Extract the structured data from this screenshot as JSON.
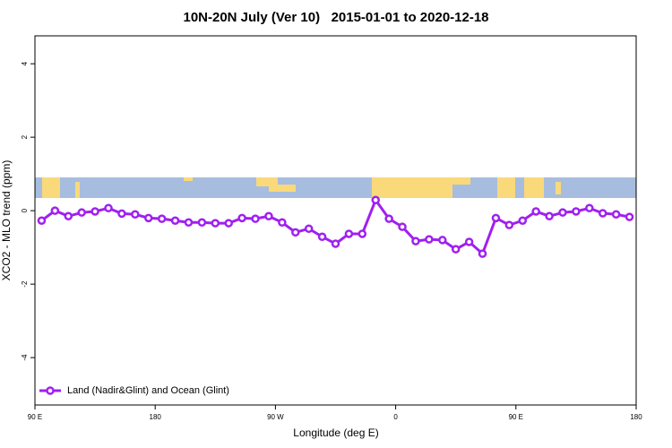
{
  "chart_data": {
    "type": "line",
    "title": "10N-20N July (Ver 10)   2015-01-01 to 2020-12-18",
    "x_label": "Longitude (deg E)",
    "y_label": "XCO2 - MLO trend (ppm)",
    "x": [
      95,
      105,
      115,
      125,
      135,
      145,
      155,
      165,
      175,
      185,
      195,
      205,
      215,
      225,
      235,
      245,
      255,
      265,
      275,
      285,
      295,
      305,
      315,
      325,
      335,
      345,
      355,
      365,
      375,
      385,
      395,
      405,
      415,
      425,
      435,
      445,
      455,
      465,
      475,
      485,
      495,
      505,
      515,
      525,
      535
    ],
    "series": [
      {
        "name": "Land (Nadir&Glint) and Ocean (Glint)",
        "color": "#a020f0",
        "values": [
          -0.27,
          0.0,
          -0.15,
          -0.05,
          -0.02,
          0.07,
          -0.08,
          -0.1,
          -0.2,
          -0.22,
          -0.27,
          -0.32,
          -0.32,
          -0.34,
          -0.34,
          -0.2,
          -0.22,
          -0.15,
          -0.32,
          -0.59,
          -0.49,
          -0.71,
          -0.9,
          -0.63,
          -0.63,
          0.29,
          -0.22,
          -0.44,
          -0.83,
          -0.78,
          -0.8,
          -1.05,
          -0.85,
          -1.17,
          -0.2,
          -0.39,
          -0.27,
          -0.02,
          -0.15,
          -0.05,
          -0.02,
          0.07,
          -0.07,
          -0.1,
          -0.17
        ]
      }
    ],
    "xlim": [
      90,
      540
    ],
    "xticks": [
      {
        "value": 90,
        "label": "90 E"
      },
      180,
      {
        "value": 270,
        "label": "90 W"
      },
      {
        "value": 360,
        "label": "0"
      },
      {
        "value": 450,
        "label": "90 E"
      },
      {
        "value": 540,
        "label": "180"
      }
    ],
    "ylim": [
      -5.29,
      4.76
    ],
    "yticks": [
      -4,
      -2,
      0,
      2,
      4
    ],
    "grid": false,
    "legend": "bottom-left"
  }
}
